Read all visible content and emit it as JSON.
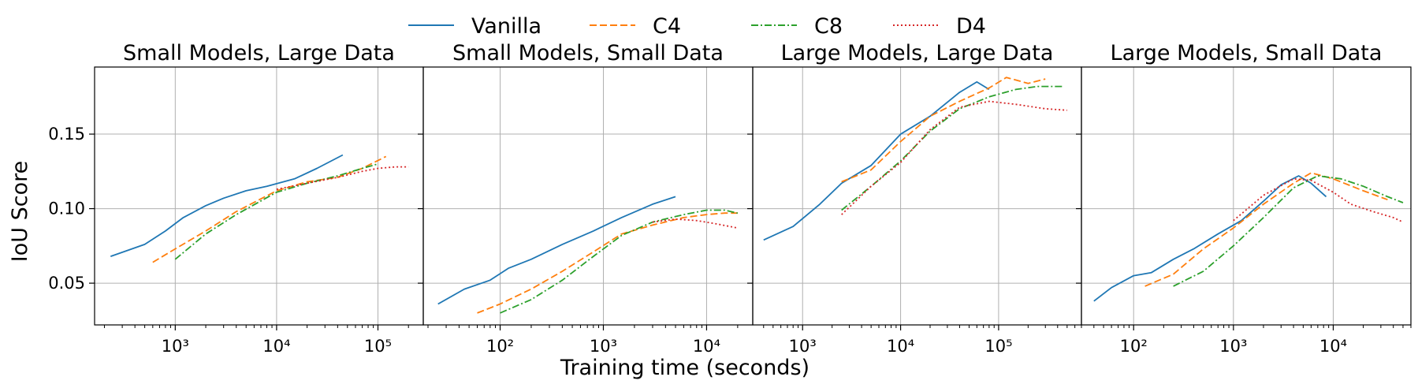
{
  "figure": {
    "xlabel": "Training time (seconds)",
    "ylabel": "IoU Score"
  },
  "legend": [
    {
      "label": "Vanilla",
      "color": "#1f77b4",
      "dash": "solid"
    },
    {
      "label": "C4",
      "color": "#ff7f0e",
      "dash": "dashed"
    },
    {
      "label": "C8",
      "color": "#2ca02c",
      "dash": "dashdot"
    },
    {
      "label": "D4",
      "color": "#d62728",
      "dash": "dotted"
    }
  ],
  "chart_data": [
    {
      "type": "line",
      "title": "Small Models, Large Data",
      "xscale": "log",
      "xlim": [
        160,
        280000
      ],
      "ylim": [
        0.022,
        0.195
      ],
      "xticks": [
        1000,
        10000,
        100000
      ],
      "xtick_labels": [
        "10^3",
        "10^4",
        "10^5"
      ],
      "yticks": [
        0.05,
        0.1,
        0.15
      ],
      "ytick_labels": [
        "0.05",
        "0.10",
        "0.15"
      ],
      "series": [
        {
          "name": "Vanilla",
          "x": [
            230,
            500,
            800,
            1200,
            2000,
            3000,
            5000,
            8000,
            15000,
            25000,
            45000
          ],
          "y": [
            0.068,
            0.076,
            0.085,
            0.094,
            0.102,
            0.107,
            0.112,
            0.115,
            0.12,
            0.127,
            0.136
          ]
        },
        {
          "name": "C4",
          "x": [
            600,
            1000,
            2000,
            4000,
            10000,
            20000,
            40000,
            70000,
            120000
          ],
          "y": [
            0.064,
            0.073,
            0.085,
            0.098,
            0.112,
            0.118,
            0.121,
            0.127,
            0.135
          ]
        },
        {
          "name": "C8",
          "x": [
            1000,
            2000,
            4000,
            10000,
            20000,
            40000,
            70000,
            100000
          ],
          "y": [
            0.066,
            0.083,
            0.096,
            0.111,
            0.117,
            0.122,
            0.127,
            0.13
          ]
        },
        {
          "name": "D4",
          "x": [
            10000,
            20000,
            40000,
            70000,
            100000,
            150000,
            200000
          ],
          "y": [
            0.113,
            0.117,
            0.121,
            0.125,
            0.127,
            0.128,
            0.128
          ]
        }
      ]
    },
    {
      "type": "line",
      "title": "Small Models, Small Data",
      "xscale": "log",
      "xlim": [
        18,
        28000
      ],
      "ylim": [
        0.022,
        0.195
      ],
      "xticks": [
        100,
        1000,
        10000
      ],
      "xtick_labels": [
        "10^2",
        "10^3",
        "10^4"
      ],
      "yticks": [
        0.05,
        0.1,
        0.15
      ],
      "ytick_labels": [
        "0.05",
        "0.10",
        "0.15"
      ],
      "series": [
        {
          "name": "Vanilla",
          "x": [
            25,
            45,
            80,
            120,
            200,
            400,
            800,
            1500,
            3000,
            5000
          ],
          "y": [
            0.036,
            0.046,
            0.052,
            0.06,
            0.066,
            0.076,
            0.085,
            0.094,
            0.103,
            0.108
          ]
        },
        {
          "name": "C4",
          "x": [
            60,
            100,
            200,
            400,
            800,
            1500,
            3000,
            6000,
            10000,
            15000,
            20000
          ],
          "y": [
            0.03,
            0.036,
            0.046,
            0.058,
            0.071,
            0.083,
            0.089,
            0.094,
            0.096,
            0.097,
            0.097
          ]
        },
        {
          "name": "C8",
          "x": [
            100,
            200,
            400,
            800,
            1500,
            3000,
            6000,
            10000,
            15000,
            20000
          ],
          "y": [
            0.03,
            0.039,
            0.052,
            0.068,
            0.082,
            0.091,
            0.096,
            0.099,
            0.099,
            0.097
          ]
        },
        {
          "name": "D4",
          "x": [
            3000,
            5000,
            8000,
            12000,
            20000
          ],
          "y": [
            0.091,
            0.093,
            0.092,
            0.09,
            0.087
          ]
        }
      ]
    },
    {
      "type": "line",
      "title": "Large Models, Large Data",
      "xscale": "log",
      "xlim": [
        310,
        700000
      ],
      "ylim": [
        0.022,
        0.195
      ],
      "xticks": [
        1000,
        10000,
        100000
      ],
      "xtick_labels": [
        "10^3",
        "10^4",
        "10^5"
      ],
      "yticks": [
        0.05,
        0.1,
        0.15
      ],
      "ytick_labels": [
        "0.05",
        "0.10",
        "0.15"
      ],
      "series": [
        {
          "name": "Vanilla",
          "x": [
            400,
            800,
            1500,
            2500,
            5000,
            10000,
            20000,
            40000,
            60000,
            80000
          ],
          "y": [
            0.079,
            0.088,
            0.103,
            0.117,
            0.129,
            0.15,
            0.162,
            0.178,
            0.185,
            0.18
          ]
        },
        {
          "name": "C4",
          "x": [
            2500,
            5000,
            10000,
            20000,
            40000,
            80000,
            120000,
            200000,
            300000
          ],
          "y": [
            0.118,
            0.126,
            0.145,
            0.162,
            0.172,
            0.181,
            0.188,
            0.184,
            0.187
          ]
        },
        {
          "name": "C8",
          "x": [
            2500,
            5000,
            10000,
            20000,
            40000,
            80000,
            150000,
            250000,
            450000
          ],
          "y": [
            0.099,
            0.115,
            0.132,
            0.152,
            0.167,
            0.175,
            0.18,
            0.182,
            0.182
          ]
        },
        {
          "name": "D4",
          "x": [
            2500,
            5000,
            10000,
            20000,
            40000,
            80000,
            150000,
            300000,
            500000
          ],
          "y": [
            0.096,
            0.115,
            0.131,
            0.153,
            0.168,
            0.172,
            0.17,
            0.167,
            0.166
          ]
        }
      ]
    },
    {
      "type": "line",
      "title": "Large Models, Small Data",
      "xscale": "log",
      "xlim": [
        30,
        60000
      ],
      "ylim": [
        0.022,
        0.195
      ],
      "xticks": [
        100,
        1000,
        10000
      ],
      "xtick_labels": [
        "10^2",
        "10^3",
        "10^4"
      ],
      "yticks": [
        0.05,
        0.1,
        0.15
      ],
      "ytick_labels": [
        "0.05",
        "0.10",
        "0.15"
      ],
      "series": [
        {
          "name": "Vanilla",
          "x": [
            40,
            60,
            100,
            150,
            250,
            400,
            700,
            1200,
            2000,
            3000,
            4500,
            6000,
            8500
          ],
          "y": [
            0.038,
            0.047,
            0.055,
            0.057,
            0.066,
            0.073,
            0.083,
            0.092,
            0.105,
            0.116,
            0.122,
            0.117,
            0.108
          ]
        },
        {
          "name": "C4",
          "x": [
            130,
            250,
            500,
            1000,
            2000,
            4000,
            6000,
            10000,
            20000,
            35000
          ],
          "y": [
            0.048,
            0.056,
            0.073,
            0.087,
            0.103,
            0.117,
            0.124,
            0.12,
            0.112,
            0.106
          ]
        },
        {
          "name": "C8",
          "x": [
            250,
            500,
            1000,
            2000,
            4000,
            7000,
            12000,
            20000,
            35000,
            50000
          ],
          "y": [
            0.048,
            0.058,
            0.075,
            0.094,
            0.114,
            0.122,
            0.12,
            0.115,
            0.108,
            0.104
          ]
        },
        {
          "name": "D4",
          "x": [
            1000,
            2000,
            4000,
            6000,
            10000,
            15000,
            25000,
            40000,
            50000
          ],
          "y": [
            0.092,
            0.109,
            0.12,
            0.119,
            0.111,
            0.103,
            0.098,
            0.094,
            0.091
          ]
        }
      ]
    }
  ]
}
